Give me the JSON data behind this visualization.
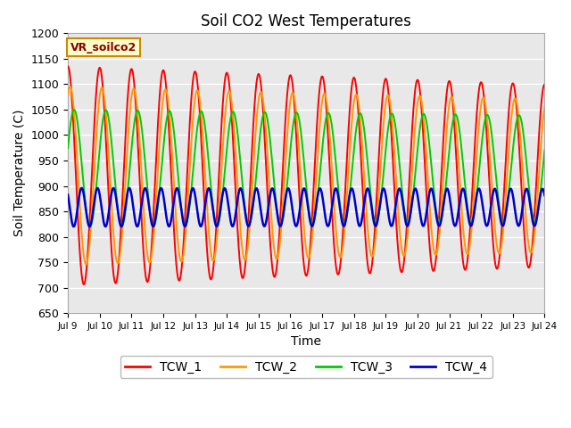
{
  "title": "Soil CO2 West Temperatures",
  "xlabel": "Time",
  "ylabel": "Soil Temperature (C)",
  "ylim": [
    650,
    1200
  ],
  "annotation": "VR_soilco2",
  "bg_color": "#e8e8e8",
  "grid_color": "#ffffff",
  "xtick_labels": [
    "Jul 9",
    "Jul 10",
    "Jul 11",
    "Jul 12",
    "Jul 13",
    "Jul 14",
    "Jul 15",
    "Jul 16",
    "Jul 17",
    "Jul 18",
    "Jul 19",
    "Jul 20",
    "Jul 21",
    "Jul 22",
    "Jul 23",
    "Jul 24"
  ],
  "lines": {
    "TCW_1": {
      "color": "#ff0000",
      "amplitude": 215,
      "mean": 920,
      "phase_deg": 90,
      "freq": 1.0,
      "decay": 0.012,
      "lw": 1.4
    },
    "TCW_2": {
      "color": "#ff9900",
      "amplitude": 175,
      "mean": 920,
      "phase_deg": 65,
      "freq": 1.0,
      "decay": 0.01,
      "lw": 1.4
    },
    "TCW_3": {
      "color": "#00cc00",
      "amplitude": 115,
      "mean": 935,
      "phase_deg": 20,
      "freq": 1.0,
      "decay": 0.007,
      "lw": 1.4
    },
    "TCW_4": {
      "color": "#0000cc",
      "amplitude": 38,
      "mean": 858,
      "phase_deg": 140,
      "freq": 2.0,
      "decay": 0.003,
      "lw": 1.8
    }
  },
  "legend_order": [
    "TCW_1",
    "TCW_2",
    "TCW_3",
    "TCW_4"
  ]
}
